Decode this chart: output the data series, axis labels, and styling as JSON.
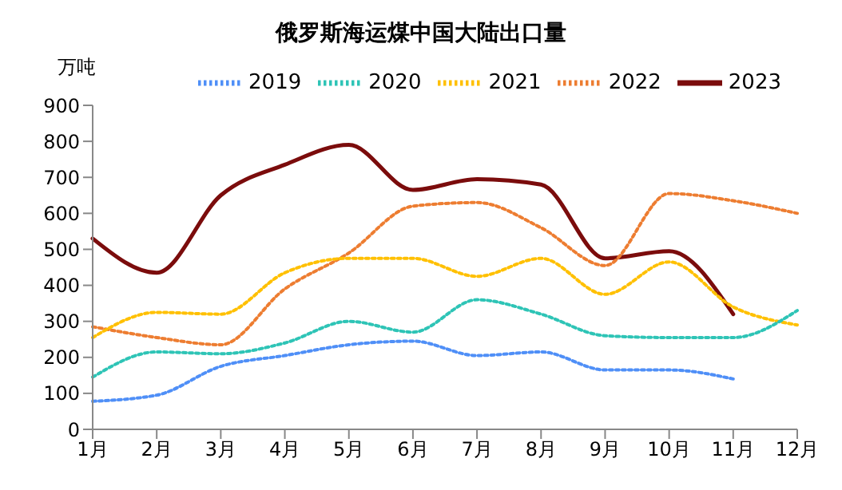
{
  "chart_data": {
    "type": "line",
    "title": "俄罗斯海运煤中国大陆出口量",
    "ylabel": "万吨",
    "categories": [
      "1月",
      "2月",
      "3月",
      "4月",
      "5月",
      "6月",
      "7月",
      "8月",
      "9月",
      "10月",
      "11月",
      "12月"
    ],
    "series": [
      {
        "name": "2023",
        "color": "#7b0c0c",
        "line_style": "solid",
        "values": [
          530,
          435,
          650,
          735,
          790,
          665,
          695,
          680,
          475,
          495,
          320,
          null
        ]
      },
      {
        "name": "2022",
        "color": "#ed7d31",
        "line_style": "dotted",
        "values": [
          285,
          255,
          235,
          390,
          490,
          620,
          630,
          560,
          455,
          655,
          635,
          600
        ]
      },
      {
        "name": "2021",
        "color": "#ffc000",
        "line_style": "dotted",
        "values": [
          255,
          325,
          320,
          435,
          475,
          475,
          425,
          475,
          375,
          465,
          340,
          290
        ]
      },
      {
        "name": "2020",
        "color": "#2ec4b6",
        "line_style": "dotted",
        "values": [
          145,
          215,
          210,
          240,
          300,
          270,
          360,
          320,
          260,
          255,
          255,
          330
        ]
      },
      {
        "name": "2019",
        "color": "#4f8ff7",
        "line_style": "dotted",
        "values": [
          78,
          95,
          175,
          205,
          235,
          245,
          205,
          215,
          165,
          165,
          140,
          null
        ]
      }
    ],
    "ylim": [
      0,
      900
    ],
    "yticks": [
      0,
      100,
      200,
      300,
      400,
      500,
      600,
      700,
      800,
      900
    ],
    "grid": false,
    "legend": "top",
    "marker": "none"
  }
}
